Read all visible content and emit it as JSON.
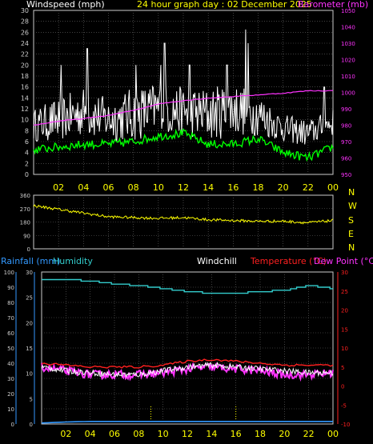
{
  "header": {
    "left": "Windspeed (mph)",
    "center": "24 hour graph day : 02 December 2025",
    "right": "Barometer (mb)"
  },
  "bottom_header": {
    "rainfall": "Rainfall (mm)",
    "humidity": "Humidity",
    "windchill": "Windchill",
    "temperature": "Temperature (°C)",
    "dewpoint": "Dew Point (°C)"
  },
  "colors": {
    "windspeed": "#ffffff",
    "windgust_fill": "#d9d9d9",
    "wind_avg": "#00ff00",
    "barometer": "#ff33ff",
    "direction": "#ffff00",
    "humidity": "#33cccc",
    "rainfall": "#3399ff",
    "temperature": "#ff2020",
    "dewpoint": "#ff33ff",
    "windchill": "#ffffff",
    "grid": "#6a6a6a",
    "axis_right_bottom": "#ff2020",
    "axis_left_bottom": "#3399ff",
    "axis_text": "#cccccc",
    "hour_labels": "#ffff00",
    "frame": "#cccccc"
  },
  "chart_data": [
    {
      "type": "line",
      "name": "wind-baro",
      "title": "24 hour graph day : 02 December 2025",
      "x_ticks": [
        "02",
        "04",
        "06",
        "08",
        "10",
        "12",
        "14",
        "16",
        "18",
        "20",
        "22",
        "00"
      ],
      "y_left_label": "Windspeed (mph)",
      "y_left_ticks": [
        "0",
        "2",
        "4",
        "6",
        "8",
        "10",
        "12",
        "14",
        "16",
        "18",
        "20",
        "22",
        "24",
        "26",
        "28",
        "30"
      ],
      "y_left_range": [
        0,
        30
      ],
      "y_right_label": "Barometer (mb)",
      "y_right_ticks": [
        "950",
        "960",
        "970",
        "980",
        "990",
        "1000",
        "1010",
        "1020",
        "1030",
        "1040",
        "1050"
      ],
      "y_right_range": [
        950,
        1050
      ],
      "hours": [
        0,
        2,
        4,
        6,
        8,
        10,
        12,
        14,
        16,
        18,
        20,
        22,
        24
      ],
      "series": [
        {
          "kind": "gust_band_low",
          "values": [
            6,
            6,
            7,
            6,
            6,
            7,
            7,
            6,
            7,
            7,
            6,
            5,
            7
          ]
        },
        {
          "kind": "gust_band_high",
          "values": [
            12,
            14,
            16,
            14,
            16,
            17,
            16,
            16,
            17,
            15,
            11,
            10,
            12
          ]
        },
        {
          "kind": "gust_peaks",
          "points": [
            [
              2.2,
              20
            ],
            [
              4.3,
              23
            ],
            [
              8.2,
              20
            ],
            [
              10.2,
              20
            ],
            [
              10.5,
              24
            ],
            [
              12.5,
              20
            ],
            [
              15.5,
              20
            ],
            [
              17.0,
              26.5
            ],
            [
              17.2,
              24
            ],
            [
              23.3,
              16
            ]
          ]
        },
        {
          "kind": "average",
          "values": [
            4.5,
            5,
            5.5,
            5.5,
            6,
            7,
            7.5,
            5.5,
            5.5,
            6.5,
            4,
            3,
            5
          ]
        },
        {
          "kind": "barometer",
          "values": [
            980,
            982.5,
            984,
            986,
            989,
            993,
            995,
            996.5,
            997.5,
            998.5,
            999.5,
            1001,
            1001
          ]
        }
      ]
    },
    {
      "type": "line",
      "name": "wind-direction",
      "y_left_ticks": [
        "360",
        "270",
        "180",
        "90",
        "0"
      ],
      "y_right_ticks": [
        "N",
        "W",
        "S",
        "E",
        "N"
      ],
      "y_range": [
        0,
        360
      ],
      "hours": [
        0,
        2,
        4,
        6,
        8,
        10,
        12,
        14,
        16,
        18,
        20,
        22,
        24
      ],
      "values": [
        290,
        265,
        240,
        215,
        210,
        205,
        210,
        195,
        190,
        185,
        185,
        175,
        190
      ]
    },
    {
      "type": "line",
      "name": "rain-temp",
      "x_ticks": [
        "02",
        "04",
        "06",
        "08",
        "10",
        "12",
        "14",
        "16",
        "18",
        "20",
        "22",
        "00"
      ],
      "y_left_ticks": [
        "0",
        "10",
        "20",
        "30",
        "40",
        "50",
        "60",
        "70",
        "80",
        "90",
        "100"
      ],
      "y_left_range": [
        0,
        100
      ],
      "y_inner_ticks": [
        "0",
        "5",
        "10",
        "15",
        "20",
        "25",
        "30"
      ],
      "y_inner_range": [
        0,
        30
      ],
      "y_right_ticks": [
        "-10",
        "-5",
        "0",
        "5",
        "10",
        "15",
        "20",
        "25",
        "30"
      ],
      "y_right_range": [
        -10,
        30
      ],
      "hours": [
        0,
        2,
        4,
        6,
        8,
        10,
        12,
        14,
        16,
        18,
        20,
        22,
        24
      ],
      "series": [
        {
          "name": "Humidity",
          "values": [
            95,
            95,
            94,
            92,
            91,
            89,
            87,
            86,
            86,
            87,
            88,
            91,
            89
          ]
        },
        {
          "name": "Temperature",
          "values": [
            6,
            5.5,
            5,
            5,
            5,
            5.5,
            6.5,
            7,
            6.5,
            6,
            5.5,
            5.5,
            5.5
          ]
        },
        {
          "name": "Dew Point",
          "values": [
            5,
            4,
            3,
            3,
            3,
            3.5,
            4.5,
            5,
            4.5,
            4,
            3,
            3,
            3.5
          ]
        },
        {
          "name": "Windchill",
          "values": [
            5,
            4,
            3.5,
            3,
            3,
            4,
            5,
            5.5,
            5,
            4.5,
            4,
            3.5,
            3.5
          ]
        },
        {
          "name": "Rainfall",
          "values": [
            0.2,
            0.4,
            0.5,
            0.5,
            0.5,
            0.5,
            0.5,
            0.5,
            0.5,
            0.5,
            0.5,
            0.5,
            0.5
          ]
        }
      ],
      "markers_hours": [
        9.0,
        16.0
      ]
    }
  ]
}
